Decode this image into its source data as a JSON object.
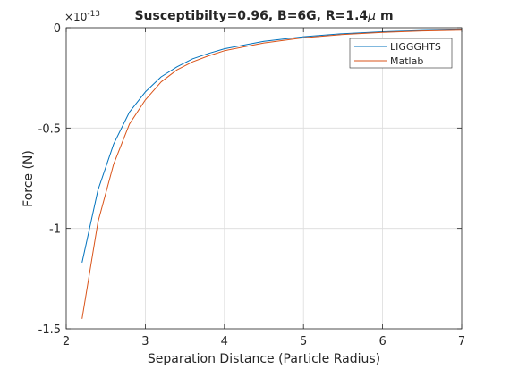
{
  "chart_data": {
    "type": "line",
    "title": "Susceptibilty=0.96, B=6G, R=1.4",
    "title_mu": "μ",
    "title_unit": " m",
    "xlabel": "Separation Distance (Particle Radius)",
    "ylabel": "Force (N)",
    "y_exponent_label": "×10",
    "y_exponent_power": "-13",
    "xlim": [
      2,
      7
    ],
    "ylim": [
      -1.5,
      0
    ],
    "xticks": [
      2,
      3,
      4,
      5,
      6,
      7
    ],
    "yticks": [
      0,
      -0.5,
      -1,
      -1.5
    ],
    "xtick_labels": [
      "2",
      "3",
      "4",
      "5",
      "6",
      "7"
    ],
    "ytick_labels": [
      "0",
      "-0.5",
      "-1",
      "-1.5"
    ],
    "grid": true,
    "legend_position": "top-right",
    "x": [
      2.2,
      2.4,
      2.6,
      2.8,
      3.0,
      3.2,
      3.4,
      3.6,
      3.8,
      4.0,
      4.5,
      5.0,
      5.5,
      6.0,
      6.5,
      7.0
    ],
    "series": [
      {
        "name": "LIGGGHTS",
        "color": "#0072BD",
        "values": [
          -1.17,
          -0.81,
          -0.58,
          -0.42,
          -0.32,
          -0.245,
          -0.195,
          -0.155,
          -0.128,
          -0.105,
          -0.068,
          -0.045,
          -0.03,
          -0.02,
          -0.014,
          -0.01
        ]
      },
      {
        "name": "Matlab",
        "color": "#D95319",
        "values": [
          -1.45,
          -0.97,
          -0.68,
          -0.48,
          -0.36,
          -0.27,
          -0.21,
          -0.17,
          -0.14,
          -0.115,
          -0.076,
          -0.05,
          -0.034,
          -0.023,
          -0.016,
          -0.012
        ]
      }
    ]
  }
}
